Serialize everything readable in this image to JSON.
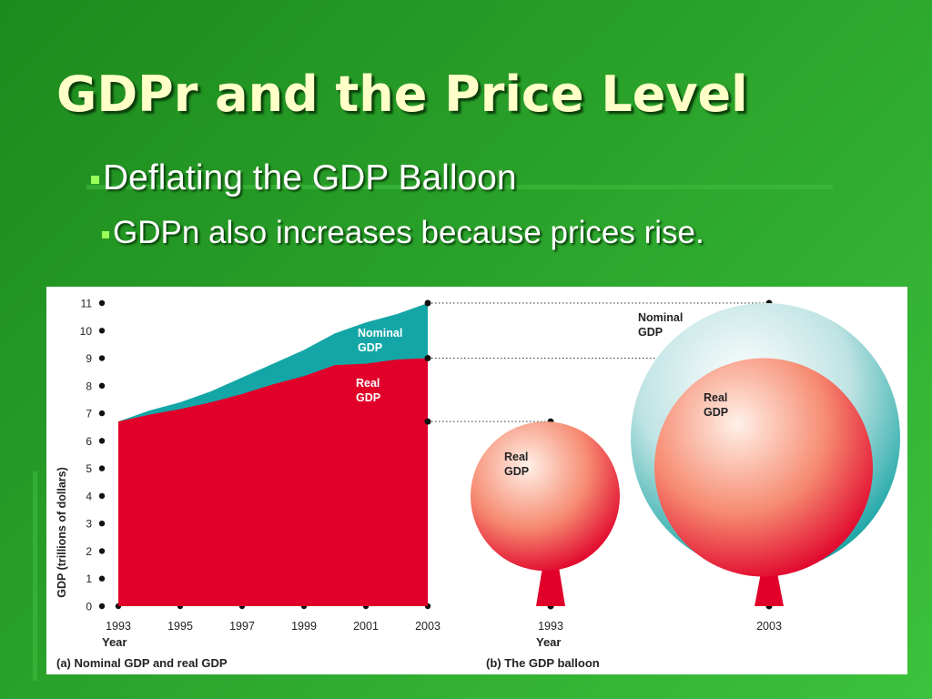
{
  "slide": {
    "title": "GDPr and the Price Level",
    "bullets": [
      "Deflating the GDP Balloon",
      "GDPn also increases because prices rise."
    ]
  },
  "colors": {
    "background": "#229922",
    "title": "#ffffc8",
    "bullet_marker": "#9bff5a",
    "nominal": "#14a6a6",
    "real": "#e0002a"
  },
  "chart_data": [
    {
      "type": "area",
      "caption": "(a) Nominal GDP and real GDP",
      "xlabel": "Year",
      "ylabel": "GDP (trillions of dollars)",
      "x_ticks": [
        "1993",
        "1995",
        "1997",
        "1999",
        "2001",
        "2003"
      ],
      "y_ticks": [
        "0",
        "1",
        "2",
        "3",
        "4",
        "5",
        "6",
        "7",
        "8",
        "9",
        "10",
        "11"
      ],
      "xlim": [
        1993,
        2003
      ],
      "ylim": [
        0,
        11
      ],
      "x": [
        1993,
        1994,
        1995,
        1996,
        1997,
        1998,
        1999,
        2000,
        2001,
        2002,
        2003
      ],
      "series": [
        {
          "name": "Nominal GDP",
          "values": [
            6.7,
            7.1,
            7.4,
            7.8,
            8.3,
            8.8,
            9.3,
            9.9,
            10.3,
            10.6,
            11.0
          ]
        },
        {
          "name": "Real GDP",
          "values": [
            6.7,
            6.95,
            7.15,
            7.4,
            7.7,
            8.05,
            8.35,
            8.75,
            8.8,
            8.95,
            9.0
          ]
        }
      ],
      "series_labels": {
        "nominal": [
          "Nominal",
          "GDP"
        ],
        "real": [
          "Real",
          "GDP"
        ]
      }
    },
    {
      "type": "other",
      "caption": "(b) The GDP balloon",
      "xlabel": "Year",
      "balloons": [
        {
          "year": "1993",
          "real_gdp": 6.7,
          "labels": {
            "real": [
              "Real",
              "GDP"
            ]
          }
        },
        {
          "year": "2003",
          "real_gdp": 9.0,
          "nominal_gdp": 11.0,
          "labels": {
            "nominal": [
              "Nominal",
              "GDP"
            ],
            "real": [
              "Real",
              "GDP"
            ]
          }
        }
      ]
    }
  ]
}
